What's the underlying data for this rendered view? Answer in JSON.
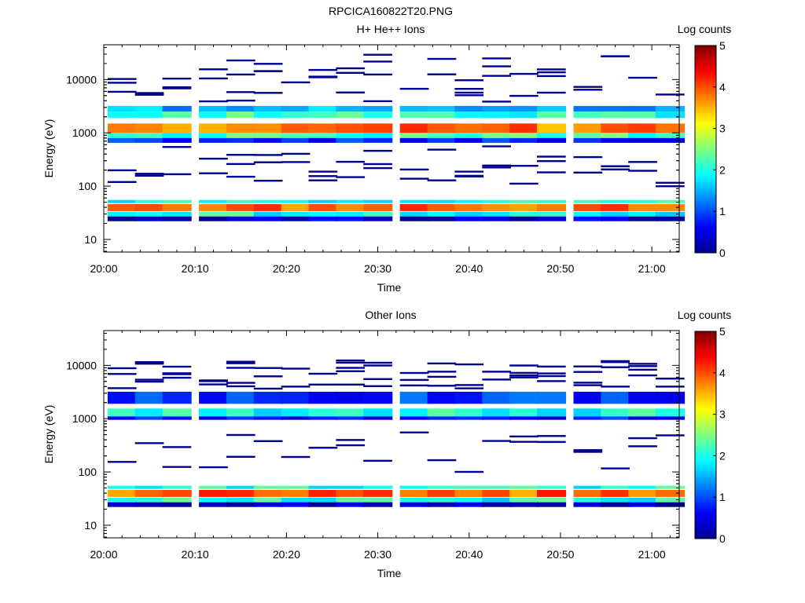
{
  "figure_title": "RPCICA160822T20.PNG",
  "colorbar": {
    "title": "Log counts",
    "range": [
      0,
      5
    ],
    "ticks": [
      "0",
      "1",
      "2",
      "3",
      "4",
      "5"
    ]
  },
  "chart_data": [
    {
      "type": "heatmap",
      "title": "H+ He++ Ions",
      "xlabel": "Time",
      "ylabel": "Energy (eV)",
      "xlim": [
        "20:00",
        "21:03"
      ],
      "ylim": [
        5.8,
        45000
      ],
      "yscale": "log",
      "xticks": [
        "20:00",
        "20:10",
        "20:20",
        "20:30",
        "20:40",
        "20:50",
        "21:00"
      ],
      "yticks": [
        "10",
        "100",
        "1000",
        "10000"
      ],
      "time_bins": [
        "20:02",
        "20:05",
        "20:08",
        "20:12",
        "20:15",
        "20:18",
        "20:21",
        "20:24",
        "20:27",
        "20:30",
        "20:34",
        "20:37",
        "20:40",
        "20:43",
        "20:46",
        "20:49",
        "20:53",
        "20:56",
        "20:59",
        "21:02"
      ],
      "bands": [
        {
          "label": "upper band top",
          "energy_range": [
            2500,
            3200
          ],
          "log_counts": 1.5
        },
        {
          "label": "upper band mid-high",
          "energy_range": [
            1900,
            2500
          ],
          "log_counts": 2.1
        },
        {
          "label": "upper band peak",
          "energy_range": [
            1000,
            1500
          ],
          "log_counts": 3.8
        },
        {
          "label": "upper band mid-low",
          "energy_range": [
            800,
            1000
          ],
          "log_counts": 2.2
        },
        {
          "label": "upper band bottom",
          "energy_range": [
            650,
            800
          ],
          "log_counts": 0.8
        },
        {
          "label": "lower band top",
          "energy_range": [
            48,
            55
          ],
          "log_counts": 2.0
        },
        {
          "label": "lower band peak",
          "energy_range": [
            34,
            46
          ],
          "log_counts": 3.9
        },
        {
          "label": "lower band bottom",
          "energy_range": [
            27,
            33
          ],
          "log_counts": 2.0
        },
        {
          "label": "lower band floor",
          "energy_range": [
            22,
            27
          ],
          "log_counts": 0.3
        }
      ],
      "scattered_counts": "sparse single counts (log counts ~0-0.5) between 80-30000 eV and 100-600 eV"
    },
    {
      "type": "heatmap",
      "title": "Other Ions",
      "xlabel": "Time",
      "ylabel": "Energy (eV)",
      "xlim": [
        "20:00",
        "21:03"
      ],
      "ylim": [
        5.8,
        45000
      ],
      "yscale": "log",
      "xticks": [
        "20:00",
        "20:10",
        "20:20",
        "20:30",
        "20:40",
        "20:50",
        "21:00"
      ],
      "yticks": [
        "10",
        "100",
        "1000",
        "10000"
      ],
      "time_bins": [
        "20:02",
        "20:05",
        "20:08",
        "20:12",
        "20:15",
        "20:18",
        "20:21",
        "20:24",
        "20:27",
        "20:30",
        "20:34",
        "20:37",
        "20:40",
        "20:43",
        "20:46",
        "20:49",
        "20:53",
        "20:56",
        "20:59",
        "21:02"
      ],
      "bands": [
        {
          "label": "upper band top",
          "energy_range": [
            1900,
            3200
          ],
          "log_counts": 0.9
        },
        {
          "label": "upper band mid",
          "energy_range": [
            1100,
            1550
          ],
          "log_counts": 2.0
        },
        {
          "label": "upper band bottom",
          "energy_range": [
            950,
            1100
          ],
          "log_counts": 0.7
        },
        {
          "label": "lower band top",
          "energy_range": [
            48,
            55
          ],
          "log_counts": 2.0
        },
        {
          "label": "lower band peak",
          "energy_range": [
            34,
            46
          ],
          "log_counts": 3.9
        },
        {
          "label": "lower band bottom",
          "energy_range": [
            27,
            33
          ],
          "log_counts": 2.0
        },
        {
          "label": "lower band floor",
          "energy_range": [
            22,
            27
          ],
          "log_counts": 0.3
        }
      ],
      "scattered_counts": "sparse single counts (log counts ~0-0.5) between 80-12000 eV"
    }
  ]
}
